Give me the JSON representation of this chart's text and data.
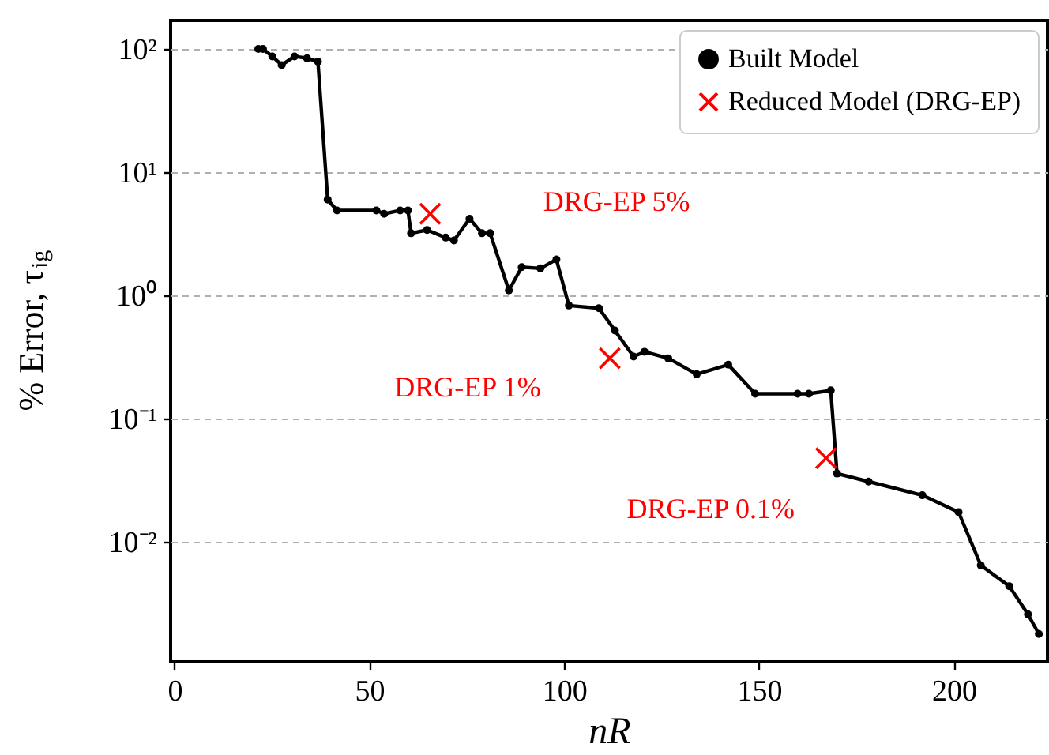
{
  "chart_data": {
    "type": "line",
    "xlabel": "nR",
    "ylabel": "% Error, τ$_{ig}$",
    "xlim": [
      -1,
      224
    ],
    "xticks": [
      0,
      50,
      100,
      150,
      200
    ],
    "ylim": [
      0.00107,
      170
    ],
    "log": "y",
    "yticks": [
      {
        "value": 0.01,
        "label": "10⁻²"
      },
      {
        "value": 0.1,
        "label": "10⁻¹"
      },
      {
        "value": 1,
        "label": "10⁰"
      },
      {
        "value": 10,
        "label": "10¹"
      },
      {
        "value": 100,
        "label": "10²"
      }
    ],
    "grid": "y",
    "legend": "top right",
    "series": [
      {
        "name": "Built Model",
        "type": "line",
        "color": "#000000",
        "marker": "circle",
        "line_style": "solid",
        "x": [
          21.5,
          22.7,
          25.1,
          27.5,
          30.8,
          34.0,
          36.8,
          39.3,
          41.7,
          51.8,
          53.8,
          57.9,
          59.9,
          60.7,
          64.8,
          69.6,
          71.7,
          75.7,
          78.9,
          81.0,
          85.8,
          89.1,
          93.9,
          98.0,
          101.2,
          108.9,
          113.0,
          117.8,
          120.6,
          126.7,
          134.0,
          142.1,
          149.0,
          159.9,
          162.8,
          168.4,
          170.0,
          178.1,
          191.9,
          201.2,
          206.9,
          214.2,
          219.0,
          221.8
        ],
        "values": [
          100,
          100,
          87,
          74,
          87,
          84,
          79,
          6.0,
          4.9,
          4.9,
          4.6,
          4.9,
          4.9,
          3.2,
          3.4,
          2.95,
          2.8,
          4.2,
          3.2,
          3.2,
          1.1,
          1.7,
          1.66,
          1.96,
          0.83,
          0.79,
          0.52,
          0.32,
          0.35,
          0.31,
          0.23,
          0.275,
          0.16,
          0.16,
          0.16,
          0.17,
          0.036,
          0.031,
          0.024,
          0.0175,
          0.0065,
          0.0044,
          0.0026,
          0.0018
        ]
      },
      {
        "name": "Reduced Model (DRG-EP)",
        "type": "scatter",
        "color": "#ff0000",
        "marker": "cross",
        "x": [
          65.6,
          111.7,
          167.2
        ],
        "values": [
          4.6,
          0.31,
          0.048
        ]
      }
    ],
    "annotations": [
      "DRG-EP 5%",
      "DRG-EP 1%",
      "DRG-EP 0.1%"
    ]
  }
}
